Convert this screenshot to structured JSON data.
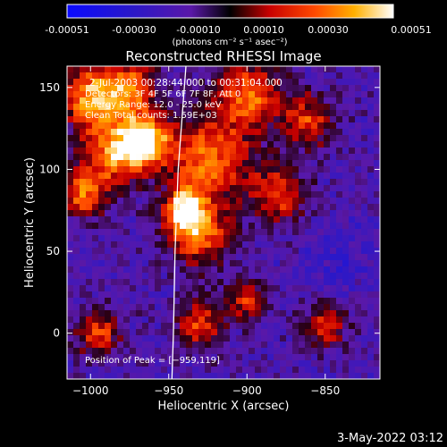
{
  "colorbar": {
    "ticks": [
      "-0.00051",
      "-0.00030",
      "-0.00010",
      "0.00010",
      "0.00030",
      "0.00051"
    ],
    "tick_values": [
      -0.00051,
      -0.0003,
      -0.0001,
      0.0001,
      0.0003,
      0.00051
    ],
    "range": [
      -0.00051,
      0.00051
    ],
    "units_label": "(photons cm⁻² s⁻¹ asec⁻²)"
  },
  "chart_data": {
    "type": "heatmap",
    "title": "Reconstructed RHESSI Image",
    "xlabel": "Heliocentric X (arcsec)",
    "ylabel": "Heliocentric Y (arcsec)",
    "xlim": [
      -1015,
      -815
    ],
    "ylim": [
      -28,
      163
    ],
    "xticks": [
      -1000,
      -950,
      -900,
      -850
    ],
    "yticks": [
      0,
      50,
      100,
      150
    ],
    "xtick_labels": [
      "−1000",
      "−950",
      "−900",
      "−850"
    ],
    "ytick_labels": [
      "0",
      "50",
      "100",
      "150"
    ],
    "limb_curve": [
      [
        -939,
        163
      ],
      [
        -944,
        100
      ],
      [
        -946,
        50
      ],
      [
        -947,
        0
      ],
      [
        -948,
        -28
      ]
    ],
    "peak": [
      -959,
      119
    ],
    "hot_regions": [
      {
        "x": -965,
        "y": 118,
        "r": 15,
        "v": 1.0
      },
      {
        "x": -1000,
        "y": 145,
        "r": 18,
        "v": 0.75
      },
      {
        "x": -985,
        "y": 110,
        "r": 20,
        "v": 0.7
      },
      {
        "x": -940,
        "y": 75,
        "r": 12,
        "v": 0.85
      },
      {
        "x": -925,
        "y": 105,
        "r": 25,
        "v": 0.6
      },
      {
        "x": -930,
        "y": 60,
        "r": 20,
        "v": 0.55
      },
      {
        "x": -900,
        "y": 145,
        "r": 22,
        "v": 0.55
      },
      {
        "x": -975,
        "y": 150,
        "r": 16,
        "v": 0.6
      },
      {
        "x": -1005,
        "y": 85,
        "r": 14,
        "v": 0.55
      },
      {
        "x": -880,
        "y": 85,
        "r": 18,
        "v": 0.4
      },
      {
        "x": -860,
        "y": 130,
        "r": 16,
        "v": 0.35
      },
      {
        "x": -995,
        "y": 0,
        "r": 14,
        "v": 0.4
      },
      {
        "x": -930,
        "y": 5,
        "r": 15,
        "v": 0.4
      },
      {
        "x": -900,
        "y": 20,
        "r": 12,
        "v": 0.35
      },
      {
        "x": -850,
        "y": 5,
        "r": 14,
        "v": 0.3
      }
    ],
    "cold_regions": [
      {
        "x": -840,
        "y": 45,
        "r": 20,
        "v": -0.5
      },
      {
        "x": -890,
        "y": 35,
        "r": 18,
        "v": -0.35
      },
      {
        "x": -990,
        "y": 40,
        "r": 18,
        "v": -0.3
      },
      {
        "x": -860,
        "y": -15,
        "r": 14,
        "v": -0.3
      },
      {
        "x": -870,
        "y": 120,
        "r": 14,
        "v": -0.25
      }
    ]
  },
  "annotations": {
    "time_range": "2-Jul-2003 00:28:44.000 to 00:31:04.000",
    "detectors": "Detectors: 3F 4F 5F 6F 7F 8F, Att 0",
    "energy_range": "Energy Range: 12.0 - 25.0 keV",
    "clean": "Clean     Total counts: 1.59E+03",
    "peak_label": "Position of Peak = [−959,119]"
  },
  "footer": {
    "date": "3-May-2022 03:12"
  }
}
